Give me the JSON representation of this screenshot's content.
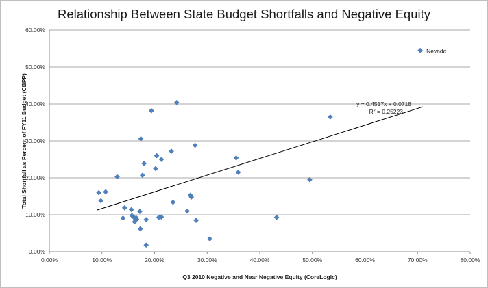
{
  "chart_data": {
    "type": "scatter",
    "title": "Relationship Between State Budget Shortfalls and Negative Equity",
    "xlabel": "Q3 2010 Negative and Near Negative Equity (CoreLogic)",
    "ylabel": "Total Shortfall as Percent of FY11 Budget  (CBPP)",
    "xlim": [
      0,
      0.8
    ],
    "ylim": [
      0,
      0.6
    ],
    "x_ticks": [
      "0.00%",
      "10.00%",
      "20.00%",
      "30.00%",
      "40.00%",
      "50.00%",
      "60.00%",
      "70.00%",
      "80.00%"
    ],
    "y_ticks": [
      "0.00%",
      "10.00%",
      "20.00%",
      "30.00%",
      "40.00%",
      "50.00%",
      "60.00%"
    ],
    "grid": "horizontal",
    "marker_color": "#4f81bd",
    "points": [
      {
        "x": 0.705,
        "y": 0.545,
        "label": "Nevada"
      },
      {
        "x": 0.534,
        "y": 0.365
      },
      {
        "x": 0.495,
        "y": 0.195
      },
      {
        "x": 0.432,
        "y": 0.093
      },
      {
        "x": 0.359,
        "y": 0.215
      },
      {
        "x": 0.355,
        "y": 0.254
      },
      {
        "x": 0.305,
        "y": 0.035
      },
      {
        "x": 0.279,
        "y": 0.085
      },
      {
        "x": 0.277,
        "y": 0.288
      },
      {
        "x": 0.27,
        "y": 0.148
      },
      {
        "x": 0.268,
        "y": 0.153
      },
      {
        "x": 0.262,
        "y": 0.11
      },
      {
        "x": 0.242,
        "y": 0.404
      },
      {
        "x": 0.235,
        "y": 0.134
      },
      {
        "x": 0.232,
        "y": 0.272
      },
      {
        "x": 0.213,
        "y": 0.25
      },
      {
        "x": 0.213,
        "y": 0.094
      },
      {
        "x": 0.208,
        "y": 0.093
      },
      {
        "x": 0.204,
        "y": 0.26
      },
      {
        "x": 0.202,
        "y": 0.225
      },
      {
        "x": 0.194,
        "y": 0.382
      },
      {
        "x": 0.184,
        "y": 0.018
      },
      {
        "x": 0.184,
        "y": 0.087
      },
      {
        "x": 0.18,
        "y": 0.239
      },
      {
        "x": 0.177,
        "y": 0.207
      },
      {
        "x": 0.174,
        "y": 0.306
      },
      {
        "x": 0.173,
        "y": 0.062
      },
      {
        "x": 0.172,
        "y": 0.109
      },
      {
        "x": 0.166,
        "y": 0.088
      },
      {
        "x": 0.165,
        "y": 0.092
      },
      {
        "x": 0.162,
        "y": 0.081
      },
      {
        "x": 0.16,
        "y": 0.094
      },
      {
        "x": 0.157,
        "y": 0.098
      },
      {
        "x": 0.156,
        "y": 0.114
      },
      {
        "x": 0.143,
        "y": 0.119
      },
      {
        "x": 0.14,
        "y": 0.091
      },
      {
        "x": 0.129,
        "y": 0.203
      },
      {
        "x": 0.107,
        "y": 0.162
      },
      {
        "x": 0.098,
        "y": 0.138
      },
      {
        "x": 0.094,
        "y": 0.16
      }
    ],
    "trendline": {
      "slope": 0.4517,
      "intercept": 0.0718,
      "x_range": [
        0.09,
        0.71
      ],
      "equation_label": "y = 0.4517x + 0.0718",
      "r2_label": "R² = 0.25223"
    }
  }
}
